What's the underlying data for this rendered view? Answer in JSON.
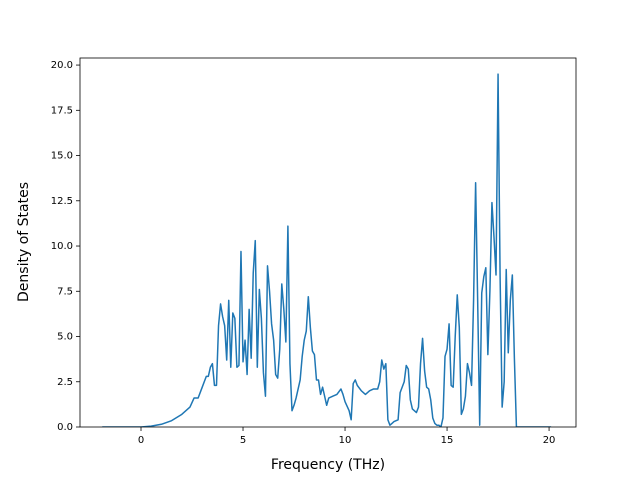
{
  "chart_data": {
    "type": "line",
    "xlabel": "Frequency (THz)",
    "ylabel": "Density of States",
    "x": [
      -1.9,
      0,
      0.5,
      1,
      1.5,
      2,
      2.4,
      2.6,
      2.8,
      3.0,
      3.2,
      3.3,
      3.4,
      3.5,
      3.6,
      3.7,
      3.8,
      3.9,
      4.0,
      4.1,
      4.2,
      4.3,
      4.4,
      4.5,
      4.6,
      4.7,
      4.8,
      4.9,
      5.0,
      5.1,
      5.2,
      5.3,
      5.4,
      5.5,
      5.6,
      5.7,
      5.8,
      5.9,
      6.0,
      6.1,
      6.2,
      6.3,
      6.4,
      6.5,
      6.6,
      6.7,
      6.8,
      6.9,
      7.0,
      7.1,
      7.2,
      7.3,
      7.4,
      7.5,
      7.6,
      7.8,
      7.9,
      8.0,
      8.1,
      8.2,
      8.3,
      8.4,
      8.5,
      8.6,
      8.7,
      8.8,
      8.9,
      9.0,
      9.1,
      9.2,
      9.4,
      9.6,
      9.8,
      9.9,
      10.0,
      10.2,
      10.3,
      10.4,
      10.5,
      10.6,
      10.8,
      11.0,
      11.2,
      11.4,
      11.6,
      11.7,
      11.8,
      11.9,
      12.0,
      12.1,
      12.2,
      12.3,
      12.4,
      12.6,
      12.7,
      12.9,
      13.0,
      13.1,
      13.2,
      13.3,
      13.5,
      13.6,
      13.7,
      13.8,
      13.9,
      14.0,
      14.1,
      14.2,
      14.3,
      14.4,
      14.5,
      14.6,
      14.7,
      14.8,
      14.9,
      15.0,
      15.1,
      15.2,
      15.3,
      15.4,
      15.5,
      15.6,
      15.7,
      15.8,
      15.9,
      16.0,
      16.1,
      16.2,
      16.3,
      16.4,
      16.5,
      16.6,
      16.7,
      16.8,
      16.9,
      17.0,
      17.1,
      17.2,
      17.3,
      17.4,
      17.5,
      17.6,
      17.7,
      17.8,
      17.9,
      18.0,
      18.1,
      18.2,
      18.3,
      18.4,
      19.0,
      20.1
    ],
    "series": [
      {
        "color": "#1f77b4",
        "values": [
          0,
          0,
          0.05,
          0.15,
          0.35,
          0.7,
          1.1,
          1.6,
          1.6,
          2.2,
          2.8,
          2.8,
          3.3,
          3.5,
          2.3,
          2.3,
          5.6,
          6.8,
          6.1,
          5.6,
          3.7,
          7.0,
          3.3,
          6.3,
          6.0,
          3.3,
          3.4,
          9.7,
          3.6,
          4.8,
          2.9,
          6.5,
          3.8,
          8.5,
          10.3,
          3.3,
          7.6,
          6.0,
          3.0,
          1.7,
          8.9,
          7.5,
          5.7,
          4.8,
          2.9,
          2.7,
          4.3,
          7.9,
          6.5,
          4.7,
          11.1,
          3.5,
          0.9,
          1.2,
          1.6,
          2.6,
          3.9,
          4.8,
          5.3,
          7.2,
          5.5,
          4.2,
          4.0,
          2.6,
          2.6,
          1.8,
          2.2,
          1.7,
          1.2,
          1.6,
          1.7,
          1.8,
          2.1,
          1.8,
          1.4,
          0.9,
          0.4,
          2.4,
          2.6,
          2.3,
          2.0,
          1.8,
          2.0,
          2.1,
          2.1,
          2.5,
          3.7,
          3.2,
          3.5,
          0.4,
          0.1,
          0.2,
          0.3,
          0.4,
          1.9,
          2.5,
          3.4,
          3.2,
          1.5,
          1.0,
          0.8,
          1.1,
          3.5,
          4.9,
          3.1,
          2.2,
          2.1,
          1.5,
          0.5,
          0.2,
          0.1,
          0.1,
          0,
          0.5,
          3.9,
          4.3,
          5.7,
          2.3,
          2.2,
          5.0,
          7.3,
          5.5,
          0.7,
          1.0,
          1.7,
          3.5,
          3.0,
          2.3,
          7.0,
          13.5,
          7.0,
          0.1,
          7.4,
          8.3,
          8.8,
          4.0,
          7.5,
          12.4,
          10.5,
          8.4,
          19.5,
          8.3,
          1.1,
          2.5,
          8.7,
          4.1,
          7.0,
          8.4,
          3.8,
          0,
          0,
          0
        ]
      }
    ],
    "xlim": [
      -2.99,
      21.32
    ],
    "ylim": [
      0,
      20.39
    ],
    "xticks": [
      0,
      5,
      10,
      15,
      20
    ],
    "yticks": [
      {
        "value": 0,
        "label": "0.0"
      },
      {
        "value": 2.5,
        "label": "2.5"
      },
      {
        "value": 5,
        "label": "5.0"
      },
      {
        "value": 7.5,
        "label": "7.5"
      },
      {
        "value": 10,
        "label": "10.0"
      },
      {
        "value": 12.5,
        "label": "12.5"
      },
      {
        "value": 15,
        "label": "15.0"
      },
      {
        "value": 17.5,
        "label": "17.5"
      },
      {
        "value": 20,
        "label": "20.0"
      }
    ]
  }
}
